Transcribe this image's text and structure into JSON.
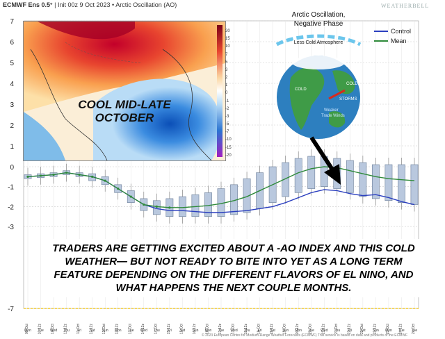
{
  "header": {
    "model": "ECMWF Ens 0.5°",
    "init": "Init 00z 9 Oct 2023",
    "index": "Arctic Oscillation (AO)"
  },
  "brand": "WEATHERBELL",
  "map": {
    "overlay_text": "COOL MID-LATE OCTOBER",
    "colorbar_labels": [
      "20",
      "15",
      "10",
      "7",
      "5",
      "3",
      "2",
      "1",
      "0",
      "-1",
      "-2",
      "-3",
      "-5",
      "-7",
      "-10",
      "-15",
      "-20"
    ]
  },
  "ao_diagram": {
    "title_line1": "Arctic Oscillation,",
    "title_line2": "Negative Phase",
    "atmosphere_label": "Less Cold Atmosphere",
    "cold_left": "COLD",
    "cold_right": "COLD",
    "storms": "STORMS",
    "trade_winds_line1": "Weaker",
    "trade_winds_line2": "Trade Winds"
  },
  "legend": {
    "control": "Control",
    "mean": "Mean",
    "control_color": "#2b3fbf",
    "mean_color": "#2f8a3a"
  },
  "caption": "TRADERS ARE GETTING EXCITED ABOUT A -AO INDEX AND THIS COLD WEATHER— BUT NOT READY TO BITE INTO YET AS A LONG TERM FEATURE DEPENDING ON THE DIFFERENT FLAVORS OF EL NINO, AND WHAT HAPPENS THE NEXT COUPLE MONTHS.",
  "footer": "© 2023 European Centre for Medium-Range Weather Forecasts (ECMWF)   This service is based on data and products of the ECMWF",
  "chart_data": {
    "type": "line",
    "ylim": [
      -7,
      7
    ],
    "yticks": [
      7,
      6,
      5,
      4,
      3,
      2,
      1,
      0,
      -1,
      -2,
      -3,
      -7
    ],
    "x_dates": [
      "09-Oct",
      "10-12z",
      "10-Oct",
      "11-12z",
      "11-Oct",
      "12-12z",
      "12-Oct",
      "13-12z",
      "13-Oct",
      "14-12z",
      "14-Oct",
      "15-12z",
      "15-Oct",
      "16-12z",
      "16-Oct",
      "17-12z",
      "17-Oct",
      "18-12z",
      "18-Oct",
      "19-12z",
      "19-Oct",
      "20-12z",
      "20-Oct",
      "21-12z",
      "21-Oct",
      "22-12z",
      "22-Oct",
      "23-12z",
      "23-Oct",
      "24-12z",
      "24-Oct"
    ],
    "x_days": [
      "Mon",
      "Tue",
      "Wed",
      "Thu",
      "Fri",
      "Sat",
      "Sun",
      "Mon",
      "Tue",
      "Wed",
      "Thu",
      "Fri",
      "Sat",
      "Sun",
      "Mon",
      "Tue",
      "Wed",
      "Thu",
      "Fri",
      "Sat",
      "Sun",
      "Mon",
      "Tue",
      "Wed",
      "Thu",
      "Fri",
      "Sat",
      "Sun",
      "Mon",
      "Tue",
      "Tue"
    ],
    "series": [
      {
        "name": "Control",
        "values": [
          -0.5,
          -0.45,
          -0.4,
          -0.3,
          -0.4,
          -0.5,
          -0.7,
          -1.1,
          -1.5,
          -1.9,
          -2.1,
          -2.2,
          -2.2,
          -2.25,
          -2.3,
          -2.3,
          -2.25,
          -2.2,
          -2.1,
          -2.0,
          -1.8,
          -1.55,
          -1.3,
          -1.15,
          -1.2,
          -1.35,
          -1.45,
          -1.4,
          -1.55,
          -1.75,
          -1.9
        ]
      },
      {
        "name": "Mean",
        "values": [
          -0.5,
          -0.45,
          -0.4,
          -0.3,
          -0.4,
          -0.5,
          -0.7,
          -1.1,
          -1.5,
          -1.9,
          -2.0,
          -2.05,
          -2.05,
          -2.0,
          -1.95,
          -1.85,
          -1.7,
          -1.5,
          -1.2,
          -0.9,
          -0.6,
          -0.3,
          -0.1,
          0.0,
          -0.05,
          -0.2,
          -0.35,
          -0.5,
          -0.6,
          -0.65,
          -0.7
        ]
      }
    ],
    "boxes": [
      {
        "low": -0.6,
        "high": -0.4
      },
      {
        "low": -0.55,
        "high": -0.35
      },
      {
        "low": -0.5,
        "high": -0.3
      },
      {
        "low": -0.4,
        "high": -0.2
      },
      {
        "low": -0.5,
        "high": -0.3
      },
      {
        "low": -0.7,
        "high": -0.35
      },
      {
        "low": -0.9,
        "high": -0.5
      },
      {
        "low": -1.3,
        "high": -0.9
      },
      {
        "low": -1.8,
        "high": -1.2
      },
      {
        "low": -2.2,
        "high": -1.6
      },
      {
        "low": -2.4,
        "high": -1.7
      },
      {
        "low": -2.5,
        "high": -1.6
      },
      {
        "low": -2.5,
        "high": -1.5
      },
      {
        "low": -2.5,
        "high": -1.4
      },
      {
        "low": -2.5,
        "high": -1.3
      },
      {
        "low": -2.5,
        "high": -1.1
      },
      {
        "low": -2.4,
        "high": -0.9
      },
      {
        "low": -2.3,
        "high": -0.6
      },
      {
        "low": -2.1,
        "high": -0.3
      },
      {
        "low": -1.8,
        "high": -0.0
      },
      {
        "low": -1.5,
        "high": 0.2
      },
      {
        "low": -1.3,
        "high": 0.4
      },
      {
        "low": -1.1,
        "high": 0.5
      },
      {
        "low": -1.0,
        "high": 0.5
      },
      {
        "low": -1.1,
        "high": 0.4
      },
      {
        "low": -1.3,
        "high": 0.3
      },
      {
        "low": -1.5,
        "high": 0.2
      },
      {
        "low": -1.6,
        "high": 0.1
      },
      {
        "low": -1.7,
        "high": 0.1
      },
      {
        "low": -1.8,
        "high": 0.1
      },
      {
        "low": -1.9,
        "high": 0.1
      }
    ]
  }
}
